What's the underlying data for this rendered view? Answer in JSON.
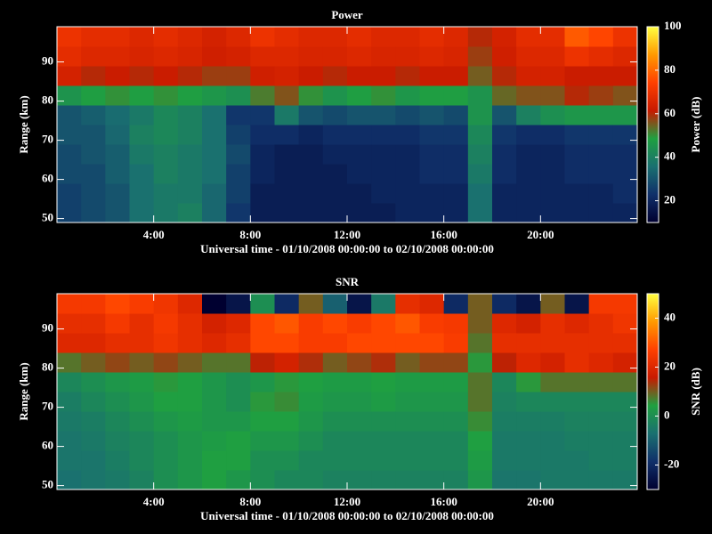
{
  "chart_data": [
    {
      "type": "heatmap",
      "title": "Power",
      "xlabel": "Universal time - 01/10/2008 00:00:00 to 02/10/2008 00:00:00",
      "ylabel": "Range (km)",
      "colorbar_label": "Power (dB)",
      "xlim": [
        0,
        24
      ],
      "xticks": [
        {
          "value": 4,
          "label": "4:00"
        },
        {
          "value": 8,
          "label": "8:00"
        },
        {
          "value": 12,
          "label": "12:00"
        },
        {
          "value": 16,
          "label": "16:00"
        },
        {
          "value": 20,
          "label": "20:00"
        }
      ],
      "ylim": [
        49,
        99
      ],
      "yticks": [
        50,
        60,
        70,
        80,
        90
      ],
      "zlim": [
        10,
        100
      ],
      "zticks": [
        20,
        40,
        60,
        80,
        100
      ],
      "colormap": [
        "#000030",
        "#10306a",
        "#1a7070",
        "#1fa040",
        "#c81a00",
        "#ff4000",
        "#ff9a00",
        "#ffff40"
      ],
      "x_bins": [
        0,
        1,
        2,
        3,
        4,
        5,
        6,
        7,
        8,
        9,
        10,
        11,
        12,
        13,
        14,
        15,
        16,
        17,
        18,
        19,
        20,
        21,
        22,
        23,
        24
      ],
      "y_bins": [
        49,
        54,
        59,
        64,
        69,
        74,
        79,
        84,
        89,
        94,
        99
      ],
      "z": [
        [
          26,
          28,
          30,
          36,
          38,
          40,
          34,
          24,
          18,
          18,
          18,
          18,
          18,
          18,
          20,
          20,
          20,
          36,
          20,
          20,
          20,
          20,
          20,
          20
        ],
        [
          26,
          28,
          30,
          36,
          38,
          38,
          34,
          26,
          18,
          18,
          18,
          18,
          18,
          20,
          20,
          20,
          20,
          36,
          20,
          20,
          20,
          20,
          20,
          22
        ],
        [
          28,
          28,
          32,
          36,
          40,
          38,
          36,
          26,
          20,
          18,
          18,
          18,
          20,
          20,
          20,
          22,
          22,
          38,
          22,
          20,
          20,
          22,
          22,
          22
        ],
        [
          28,
          30,
          32,
          38,
          40,
          38,
          36,
          28,
          20,
          18,
          18,
          20,
          20,
          20,
          20,
          22,
          22,
          40,
          22,
          20,
          20,
          22,
          22,
          22
        ],
        [
          30,
          30,
          34,
          40,
          42,
          40,
          36,
          26,
          22,
          22,
          20,
          22,
          22,
          22,
          22,
          24,
          24,
          42,
          24,
          22,
          22,
          24,
          24,
          24
        ],
        [
          30,
          32,
          35,
          38,
          42,
          40,
          36,
          24,
          24,
          38,
          30,
          28,
          30,
          30,
          28,
          30,
          28,
          45,
          30,
          40,
          44,
          46,
          46,
          46
        ],
        [
          45,
          48,
          50,
          48,
          50,
          48,
          46,
          44,
          52,
          56,
          50,
          45,
          48,
          50,
          46,
          48,
          48,
          45,
          54,
          56,
          56,
          60,
          58,
          56
        ],
        [
          64,
          60,
          62,
          60,
          62,
          60,
          58,
          58,
          63,
          64,
          62,
          60,
          62,
          62,
          60,
          62,
          62,
          55,
          60,
          64,
          64,
          62,
          62,
          62
        ],
        [
          68,
          66,
          66,
          65,
          66,
          65,
          63,
          64,
          66,
          66,
          65,
          65,
          66,
          65,
          65,
          66,
          65,
          58,
          63,
          66,
          66,
          70,
          68,
          66
        ],
        [
          70,
          68,
          68,
          66,
          68,
          66,
          64,
          66,
          70,
          68,
          66,
          66,
          68,
          66,
          66,
          68,
          66,
          60,
          64,
          68,
          68,
          78,
          75,
          70
        ]
      ]
    },
    {
      "type": "heatmap",
      "title": "SNR",
      "xlabel": "Universal time - 01/10/2008 00:00:00 to 02/10/2008 00:00:00",
      "ylabel": "Range (km)",
      "colorbar_label": "SNR (dB)",
      "xlim": [
        0,
        24
      ],
      "xticks": [
        {
          "value": 4,
          "label": "4:00"
        },
        {
          "value": 8,
          "label": "8:00"
        },
        {
          "value": 12,
          "label": "12:00"
        },
        {
          "value": 16,
          "label": "16:00"
        },
        {
          "value": 20,
          "label": "20:00"
        }
      ],
      "ylim": [
        49,
        99
      ],
      "yticks": [
        50,
        60,
        70,
        80,
        90
      ],
      "zlim": [
        -30,
        50
      ],
      "zticks": [
        -20,
        0,
        20,
        40
      ],
      "colormap": [
        "#000030",
        "#10306a",
        "#1a7070",
        "#1fa040",
        "#c81a00",
        "#ff4000",
        "#ff9a00",
        "#ffff40"
      ],
      "x_bins": [
        0,
        1,
        2,
        3,
        4,
        5,
        6,
        7,
        8,
        9,
        10,
        11,
        12,
        13,
        14,
        15,
        16,
        17,
        18,
        19,
        20,
        21,
        22,
        23,
        24
      ],
      "y_bins": [
        49,
        54,
        59,
        64,
        69,
        74,
        79,
        84,
        89,
        94,
        99
      ],
      "z": [
        [
          -7,
          -6,
          -5,
          -3,
          0,
          2,
          4,
          2,
          0,
          -2,
          -2,
          -3,
          -3,
          -3,
          -3,
          -3,
          -3,
          2,
          -6,
          -6,
          -5,
          -5,
          -5,
          -5
        ],
        [
          -6,
          -6,
          -4,
          -2,
          0,
          2,
          4,
          4,
          0,
          0,
          -2,
          -2,
          -2,
          -2,
          -2,
          -2,
          -2,
          3,
          -5,
          -5,
          -5,
          -5,
          -4,
          -4
        ],
        [
          -6,
          -5,
          -3,
          -2,
          0,
          2,
          3,
          4,
          2,
          2,
          0,
          -2,
          -2,
          -2,
          -2,
          -2,
          -2,
          4,
          -5,
          -5,
          -5,
          -4,
          -4,
          -4
        ],
        [
          -5,
          -4,
          -2,
          0,
          2,
          3,
          2,
          2,
          4,
          4,
          2,
          0,
          0,
          0,
          0,
          0,
          0,
          6,
          -4,
          -4,
          -4,
          -3,
          -3,
          -3
        ],
        [
          -4,
          -2,
          0,
          2,
          4,
          4,
          2,
          0,
          5,
          6,
          3,
          2,
          2,
          3,
          2,
          2,
          2,
          8,
          -3,
          -2,
          -2,
          -2,
          -2,
          -2
        ],
        [
          -2,
          0,
          2,
          3,
          5,
          4,
          2,
          0,
          2,
          5,
          4,
          3,
          3,
          4,
          3,
          3,
          3,
          8,
          -2,
          5,
          8,
          8,
          8,
          8
        ],
        [
          8,
          10,
          12,
          10,
          12,
          10,
          8,
          8,
          15,
          18,
          14,
          10,
          12,
          14,
          10,
          12,
          12,
          5,
          15,
          20,
          18,
          22,
          20,
          18
        ],
        [
          20,
          20,
          22,
          22,
          24,
          22,
          20,
          22,
          28,
          28,
          26,
          26,
          28,
          28,
          28,
          28,
          26,
          8,
          22,
          22,
          22,
          22,
          22,
          22
        ],
        [
          22,
          22,
          25,
          22,
          25,
          22,
          18,
          20,
          28,
          30,
          26,
          28,
          26,
          28,
          30,
          26,
          25,
          10,
          20,
          18,
          22,
          20,
          22,
          24
        ],
        [
          25,
          25,
          28,
          26,
          24,
          20,
          -30,
          -25,
          0,
          -20,
          10,
          -10,
          -25,
          -5,
          22,
          20,
          -20,
          10,
          -20,
          -25,
          10,
          -25,
          25,
          25
        ]
      ]
    }
  ]
}
